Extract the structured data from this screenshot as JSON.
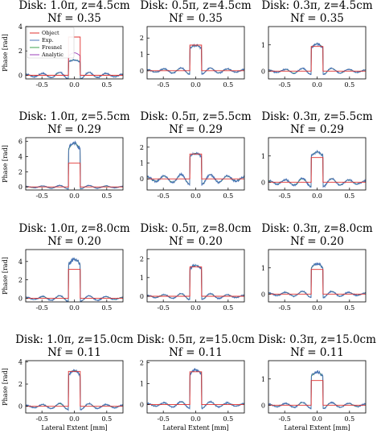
{
  "figure": {
    "xlabel": "Lateral Extent [mm]",
    "ylabel": "Phase [rad]"
  },
  "legend": {
    "entries": [
      {
        "label": "Object",
        "color": "#e0302f"
      },
      {
        "label": "Exp.",
        "color": "#4a74b8"
      },
      {
        "label": "Fresnel",
        "color": "#3fa34d"
      },
      {
        "label": "Analytic",
        "color": "#9b3fb8"
      }
    ]
  },
  "chart_data": [
    {
      "type": "line",
      "row": 0,
      "col": 0,
      "title": "Disk: 1.0π, z=4.5cm",
      "subtitle": "Nf = 0.35",
      "phase": 3.14,
      "xlim": [
        -0.75,
        0.75
      ],
      "ylim": [
        -0.3,
        4.0
      ],
      "yticks": [
        0,
        2,
        4
      ],
      "xticks": [
        -0.5,
        0.0,
        0.5
      ],
      "exp_peak": 1.1,
      "analytic_peak": 1.6,
      "ripple": 0.35
    },
    {
      "type": "line",
      "row": 0,
      "col": 1,
      "title": "Disk: 0.5π, z=4.5cm",
      "subtitle": "Nf = 0.35",
      "phase": 1.57,
      "xlim": [
        -0.75,
        0.75
      ],
      "ylim": [
        -0.5,
        2.7
      ],
      "yticks": [
        0,
        1,
        2
      ],
      "xticks": [
        -0.5,
        0.0,
        0.5
      ],
      "exp_peak": 1.35,
      "ripple": 0.25
    },
    {
      "type": "line",
      "row": 0,
      "col": 2,
      "title": "Disk: 0.3π, z=4.5cm",
      "subtitle": "Nf = 0.35",
      "phase": 0.94,
      "xlim": [
        -0.75,
        0.75
      ],
      "ylim": [
        -0.3,
        1.7
      ],
      "yticks": [
        0,
        1
      ],
      "xticks": [
        -0.5,
        0.0,
        0.5
      ],
      "exp_peak": 0.9,
      "ripple": 0.15
    },
    {
      "type": "line",
      "row": 1,
      "col": 0,
      "title": "Disk: 1.0π, z=5.5cm",
      "subtitle": "Nf = 0.29",
      "phase": 3.14,
      "xlim": [
        -0.75,
        0.75
      ],
      "ylim": [
        -0.4,
        6.5
      ],
      "yticks": [
        0,
        2,
        4,
        6
      ],
      "xticks": [
        -0.5,
        0.0,
        0.5
      ],
      "exp_peak": 5.0,
      "ripple": 0.3
    },
    {
      "type": "line",
      "row": 1,
      "col": 1,
      "title": "Disk: 0.5π, z=5.5cm",
      "subtitle": "Nf = 0.29",
      "phase": 1.57,
      "xlim": [
        -0.75,
        0.75
      ],
      "ylim": [
        -0.7,
        2.6
      ],
      "yticks": [
        0,
        1,
        2
      ],
      "xticks": [
        -0.5,
        0.0,
        0.5
      ],
      "exp_peak": 1.4,
      "ripple": 0.4
    },
    {
      "type": "line",
      "row": 1,
      "col": 2,
      "title": "Disk: 0.3π, z=5.5cm",
      "subtitle": "Nf = 0.29",
      "phase": 0.94,
      "xlim": [
        -0.75,
        0.75
      ],
      "ylim": [
        -0.3,
        1.7
      ],
      "yticks": [
        0,
        1
      ],
      "xticks": [
        -0.5,
        0.0,
        0.5
      ],
      "exp_peak": 1.0,
      "ripple": 0.2
    },
    {
      "type": "line",
      "row": 2,
      "col": 0,
      "title": "Disk: 1.0π, z=8.0cm",
      "subtitle": "Nf = 0.20",
      "phase": 3.14,
      "xlim": [
        -0.75,
        0.75
      ],
      "ylim": [
        -0.4,
        5.3
      ],
      "yticks": [
        0,
        2,
        4
      ],
      "xticks": [
        -0.5,
        0.0,
        0.5
      ],
      "exp_peak": 3.7,
      "ripple": 0.4
    },
    {
      "type": "line",
      "row": 2,
      "col": 1,
      "title": "Disk: 0.5π, z=8.0cm",
      "subtitle": "Nf = 0.20",
      "phase": 1.57,
      "xlim": [
        -0.75,
        0.75
      ],
      "ylim": [
        -0.3,
        2.5
      ],
      "yticks": [
        0,
        1,
        2
      ],
      "xticks": [
        -0.5,
        0.0,
        0.5
      ],
      "exp_peak": 1.45,
      "ripple": 0.2
    },
    {
      "type": "line",
      "row": 2,
      "col": 2,
      "title": "Disk: 0.3π, z=8.0cm",
      "subtitle": "Nf = 0.20",
      "phase": 0.94,
      "xlim": [
        -0.75,
        0.75
      ],
      "ylim": [
        -0.3,
        1.7
      ],
      "yticks": [
        0,
        1
      ],
      "xticks": [
        -0.5,
        0.0,
        0.5
      ],
      "exp_peak": 1.0,
      "ripple": 0.15
    },
    {
      "type": "line",
      "row": 3,
      "col": 0,
      "title": "Disk: 1.0π, z=15.0cm",
      "subtitle": "Nf = 0.11",
      "phase": 3.14,
      "xlim": [
        -0.75,
        0.75
      ],
      "ylim": [
        -0.6,
        4.1
      ],
      "yticks": [
        0,
        2,
        4
      ],
      "xticks": [
        -0.5,
        0.0,
        0.5
      ],
      "exp_peak": 2.8,
      "ripple": 0.35
    },
    {
      "type": "line",
      "row": 3,
      "col": 1,
      "title": "Disk: 0.5π, z=15.0cm",
      "subtitle": "Nf = 0.11",
      "phase": 1.57,
      "xlim": [
        -0.75,
        0.75
      ],
      "ylim": [
        -0.4,
        2.1
      ],
      "yticks": [
        0,
        1,
        2
      ],
      "xticks": [
        -0.5,
        0.0,
        0.5
      ],
      "exp_peak": 1.45,
      "ripple": 0.2
    },
    {
      "type": "line",
      "row": 3,
      "col": 2,
      "title": "Disk: 0.3π, z=15.0cm",
      "subtitle": "Nf = 0.11",
      "phase": 0.94,
      "xlim": [
        -0.75,
        0.75
      ],
      "ylim": [
        -0.3,
        1.7
      ],
      "yticks": [
        0,
        1
      ],
      "xticks": [
        -0.5,
        0.0,
        0.5
      ],
      "exp_peak": 1.1,
      "ripple": 0.15
    }
  ]
}
